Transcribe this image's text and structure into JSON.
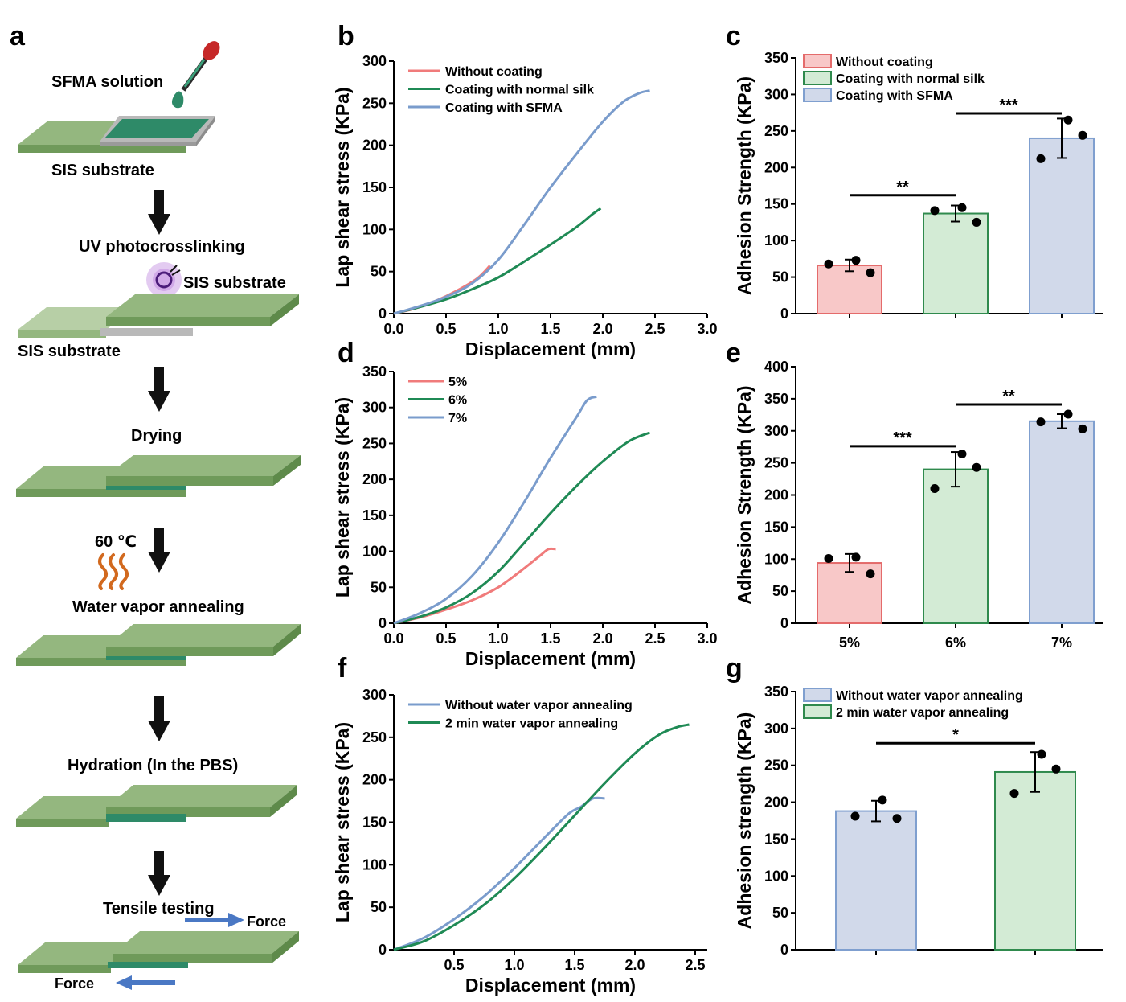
{
  "figure": {
    "panel_a": {
      "letter": "a",
      "steps": {
        "solution": "SFMA solution",
        "substrate1": "SIS substrate",
        "uv": "UV photocrosslinking",
        "substrate_top": "SIS substrate",
        "substrate_bottom": "SIS substrate",
        "drying": "Drying",
        "temp": "60 ℃",
        "annealing": "Water vapor annealing",
        "hydration": "Hydration (In  the PBS)",
        "tensile": "Tensile testing",
        "force_right": "Force",
        "force_left": "Force"
      },
      "colors": {
        "substrate_light": "#94b77f",
        "substrate_dark": "#6f9a5a",
        "coating": "#2e8a68",
        "gray_frame": "#b9b9b9",
        "arrow": "#111111",
        "force_arrow": "#4a78c4",
        "heat": "#d2691e",
        "uv_glow": "#b069d6"
      }
    }
  },
  "colors": {
    "red": "#f07b7b",
    "green": "#1f8a55",
    "blue": "#7a9ccc",
    "red_fill": "#f8c8c8",
    "green_fill": "#d3ebd5",
    "blue_fill": "#d1d9ea",
    "red_edge": "#e46b6b",
    "green_edge": "#2f8a4d",
    "blue_edge": "#7f9fcf"
  },
  "chart_data": [
    {
      "panel": "b",
      "type": "line",
      "xlabel": "Displacement (mm)",
      "ylabel": "Lap shear stress (KPa)",
      "xlim": [
        0,
        3.0
      ],
      "ylim": [
        0,
        300
      ],
      "xticks": [
        "0.0",
        "0.5",
        "1.0",
        "1.5",
        "2.0",
        "2.5",
        "3.0"
      ],
      "yticks": [
        "0",
        "50",
        "100",
        "150",
        "200",
        "250",
        "300"
      ],
      "legend_position": "top-left",
      "series": [
        {
          "name": "Without coating",
          "color_key": "red",
          "x": [
            0,
            0.2,
            0.4,
            0.6,
            0.8,
            0.92
          ],
          "y": [
            0,
            6,
            15,
            27,
            42,
            57
          ]
        },
        {
          "name": "Coating with normal silk",
          "color_key": "green",
          "x": [
            0,
            0.25,
            0.5,
            0.75,
            1.0,
            1.25,
            1.5,
            1.75,
            1.9,
            1.98
          ],
          "y": [
            0,
            8,
            17,
            29,
            43,
            62,
            82,
            103,
            118,
            125
          ]
        },
        {
          "name": "Coating with SFMA",
          "color_key": "blue",
          "x": [
            0,
            0.25,
            0.5,
            0.75,
            1.0,
            1.25,
            1.5,
            1.75,
            2.0,
            2.2,
            2.35,
            2.45
          ],
          "y": [
            0,
            9,
            20,
            36,
            64,
            106,
            150,
            190,
            228,
            252,
            262,
            265
          ]
        }
      ]
    },
    {
      "panel": "c",
      "type": "bar",
      "ylabel": "Adhesion Strength (KPa)",
      "ylim": [
        0,
        350
      ],
      "yticks": [
        "0",
        "50",
        "100",
        "150",
        "200",
        "250",
        "300",
        "350"
      ],
      "categories": [
        "Without coating",
        "Coating with normal silk",
        "Coating with SFMA"
      ],
      "category_labels": [
        "",
        "",
        ""
      ],
      "values": [
        66,
        137,
        240
      ],
      "errors": [
        8,
        11,
        27
      ],
      "points": [
        [
          68,
          73,
          56
        ],
        [
          141,
          145,
          125
        ],
        [
          212,
          265,
          244
        ]
      ],
      "color_keys": [
        "red",
        "green",
        "blue"
      ],
      "legend_position": "top-left",
      "significance": [
        {
          "from": 0,
          "to": 1,
          "label": "**",
          "y": 162
        },
        {
          "from": 1,
          "to": 2,
          "label": "***",
          "y": 274
        }
      ]
    },
    {
      "panel": "d",
      "type": "line",
      "xlabel": "Displacement (mm)",
      "ylabel": "Lap shear stress (KPa)",
      "xlim": [
        0,
        3.0
      ],
      "ylim": [
        0,
        350
      ],
      "xticks": [
        "0.0",
        "0.5",
        "1.0",
        "1.5",
        "2.0",
        "2.5",
        "3.0"
      ],
      "yticks": [
        "0",
        "50",
        "100",
        "150",
        "200",
        "250",
        "300",
        "350"
      ],
      "legend_position": "top-left",
      "series": [
        {
          "name": "5%",
          "color_key": "red",
          "x": [
            0,
            0.25,
            0.5,
            0.75,
            1.0,
            1.2,
            1.4,
            1.48,
            1.55
          ],
          "y": [
            0,
            8,
            19,
            32,
            50,
            71,
            94,
            103,
            103
          ]
        },
        {
          "name": "6%",
          "color_key": "green",
          "x": [
            0,
            0.25,
            0.5,
            0.75,
            1.0,
            1.25,
            1.5,
            1.75,
            2.0,
            2.25,
            2.45
          ],
          "y": [
            0,
            9,
            22,
            42,
            72,
            112,
            153,
            191,
            225,
            253,
            265
          ]
        },
        {
          "name": "7%",
          "color_key": "blue",
          "x": [
            0,
            0.25,
            0.5,
            0.75,
            1.0,
            1.25,
            1.5,
            1.75,
            1.85,
            1.94
          ],
          "y": [
            0,
            14,
            34,
            66,
            112,
            169,
            230,
            287,
            310,
            315
          ]
        }
      ]
    },
    {
      "panel": "e",
      "type": "bar",
      "ylabel": "Adhesion Strength (KPa)",
      "ylim": [
        0,
        400
      ],
      "yticks": [
        "0",
        "50",
        "100",
        "150",
        "200",
        "250",
        "300",
        "350",
        "400"
      ],
      "categories": [
        "5%",
        "6%",
        "7%"
      ],
      "category_labels": [
        "5%",
        "6%",
        "7%"
      ],
      "values": [
        94,
        240,
        315
      ],
      "errors": [
        14,
        27,
        11
      ],
      "points": [
        [
          101,
          103,
          77
        ],
        [
          210,
          264,
          243
        ],
        [
          314,
          326,
          303
        ]
      ],
      "color_keys": [
        "red",
        "green",
        "blue"
      ],
      "legend_position": "none",
      "significance": [
        {
          "from": 0,
          "to": 1,
          "label": "***",
          "y": 276
        },
        {
          "from": 1,
          "to": 2,
          "label": "**",
          "y": 341
        }
      ]
    },
    {
      "panel": "f",
      "type": "line",
      "xlabel": "Displacement (mm)",
      "ylabel": "Lap shear stress (KPa)",
      "xlim": [
        0,
        2.6
      ],
      "ylim": [
        0,
        300
      ],
      "xticks": [
        "0.5",
        "1.0",
        "1.5",
        "2.0",
        "2.5"
      ],
      "xtick_values": [
        0.5,
        1.0,
        1.5,
        2.0,
        2.5
      ],
      "yticks": [
        "0",
        "50",
        "100",
        "150",
        "200",
        "250",
        "300"
      ],
      "legend_position": "top-left",
      "series": [
        {
          "name": "Without water vapor annealing",
          "color_key": "blue",
          "x": [
            0,
            0.25,
            0.5,
            0.75,
            1.0,
            1.25,
            1.45,
            1.55,
            1.65,
            1.75
          ],
          "y": [
            0,
            14,
            36,
            63,
            96,
            132,
            160,
            168,
            178,
            178
          ]
        },
        {
          "name": "2 min water vapor annealing",
          "color_key": "green",
          "x": [
            0,
            0.25,
            0.5,
            0.75,
            1.0,
            1.25,
            1.5,
            1.75,
            2.0,
            2.2,
            2.35,
            2.45
          ],
          "y": [
            0,
            10,
            29,
            53,
            84,
            120,
            158,
            196,
            231,
            253,
            262,
            265
          ]
        }
      ]
    },
    {
      "panel": "g",
      "type": "bar",
      "ylabel": "Adhesion strength  (KPa)",
      "ylim": [
        0,
        350
      ],
      "yticks": [
        "0",
        "50",
        "100",
        "150",
        "200",
        "250",
        "300",
        "350"
      ],
      "categories": [
        "Without water vapor annealing",
        "2 min water vapor annealing"
      ],
      "category_labels": [
        "",
        ""
      ],
      "values": [
        188,
        241
      ],
      "errors": [
        14,
        27
      ],
      "points": [
        [
          181,
          203,
          178
        ],
        [
          212,
          265,
          245
        ]
      ],
      "color_keys": [
        "blue",
        "green"
      ],
      "legend_position": "top-left",
      "significance": [
        {
          "from": 0,
          "to": 1,
          "label": "*",
          "y": 280
        }
      ]
    }
  ]
}
